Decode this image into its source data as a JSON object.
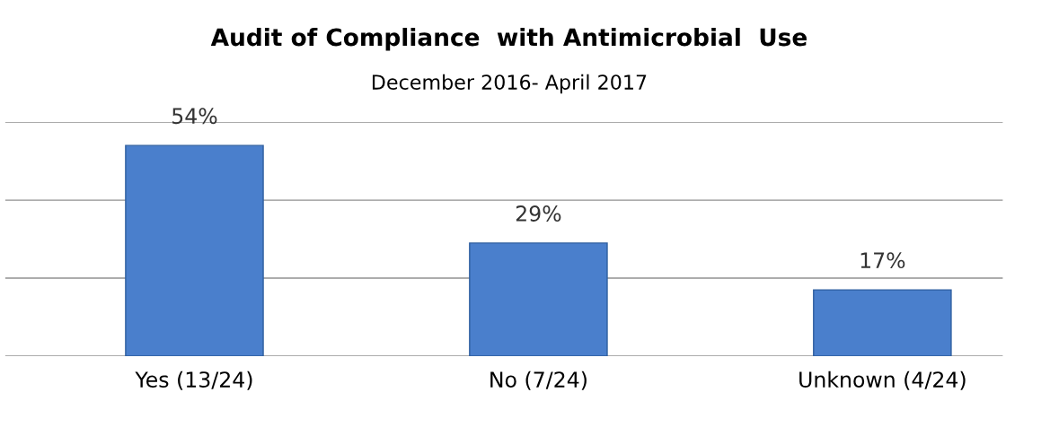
{
  "chart_data": {
    "type": "bar",
    "title": "Audit of Compliance  with Antimicrobial  Use",
    "subtitle": "December 2016- April 2017",
    "categories": [
      "Yes (13/24)",
      "No (7/24)",
      "Unknown (4/24)"
    ],
    "values": [
      54,
      29,
      17
    ],
    "color": "#4a7fcc",
    "ylim": [
      0,
      60
    ],
    "yticks": [
      {
        "value": 0,
        "label": null
      },
      {
        "value": 20,
        "label": null
      },
      {
        "value": 40,
        "label": null
      },
      {
        "value": 60,
        "label": null
      }
    ],
    "tick_labels": "x",
    "grid": "y",
    "data_labels": true,
    "value_labels": [
      "54%",
      "29%",
      "17%"
    ]
  }
}
